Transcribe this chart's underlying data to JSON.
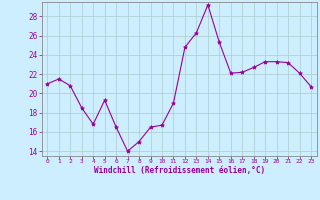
{
  "x": [
    0,
    1,
    2,
    3,
    4,
    5,
    6,
    7,
    8,
    9,
    10,
    11,
    12,
    13,
    14,
    15,
    16,
    17,
    18,
    19,
    20,
    21,
    22,
    23
  ],
  "y": [
    21.0,
    21.5,
    20.8,
    18.5,
    16.8,
    19.3,
    16.5,
    14.0,
    15.0,
    16.5,
    16.7,
    19.0,
    24.8,
    26.3,
    29.2,
    25.3,
    22.1,
    22.2,
    22.7,
    23.3,
    23.3,
    23.2,
    22.1,
    20.7
  ],
  "line_color": "#990099",
  "marker": "*",
  "marker_size": 3,
  "bg_color": "#cceeff",
  "grid_color": "#aacccc",
  "xlabel": "Windchill (Refroidissement éolien,°C)",
  "xlabel_color": "#990099",
  "ylabel_ticks": [
    14,
    16,
    18,
    20,
    22,
    24,
    26,
    28
  ],
  "xtick_labels": [
    "0",
    "1",
    "2",
    "3",
    "4",
    "5",
    "6",
    "7",
    "8",
    "9",
    "10",
    "11",
    "12",
    "13",
    "14",
    "15",
    "16",
    "17",
    "18",
    "19",
    "20",
    "21",
    "22",
    "23"
  ],
  "ylim": [
    13.5,
    29.5
  ],
  "xlim": [
    -0.5,
    23.5
  ],
  "tick_color": "#990099",
  "axis_color": "#888888",
  "font_family": "monospace"
}
